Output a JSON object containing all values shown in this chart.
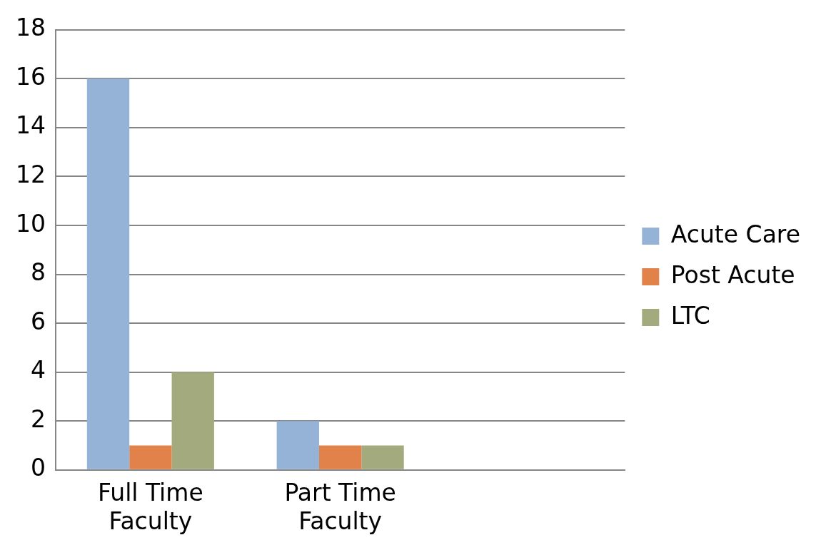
{
  "chart_data": {
    "type": "bar",
    "categories": [
      "Full Time Faculty",
      "Part Time Faculty",
      null
    ],
    "series": [
      {
        "name": "Acute Care",
        "color": "#95b3d7",
        "values": [
          16,
          2,
          null
        ]
      },
      {
        "name": "Post Acute",
        "color": "#e0824a",
        "values": [
          1,
          1,
          null
        ]
      },
      {
        "name": "LTC",
        "color": "#a3aa7e",
        "values": [
          4,
          1,
          null
        ]
      }
    ],
    "ylim": [
      0,
      18
    ],
    "yticks": [
      0,
      2,
      4,
      6,
      8,
      10,
      12,
      14,
      16,
      18
    ],
    "grid": "y",
    "legend": "right"
  }
}
